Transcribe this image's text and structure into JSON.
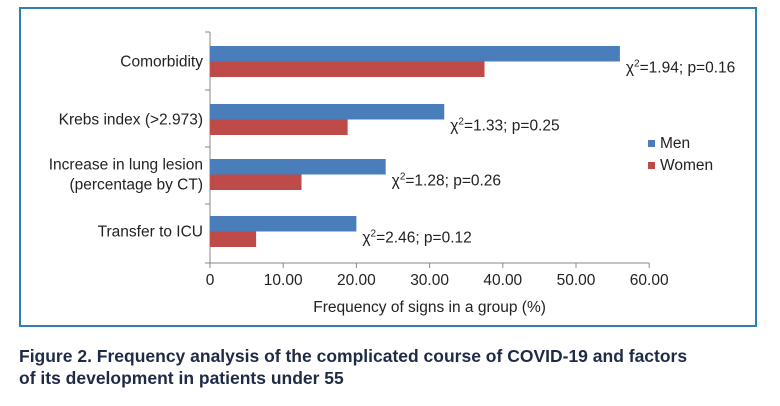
{
  "chart_data": {
    "type": "bar",
    "orientation": "horizontal",
    "categories": [
      "Comorbidity",
      "Krebs index (>2.973)",
      "Increase in lung lesion (percentage by CT)",
      "Transfer to ICU"
    ],
    "category_lines": [
      [
        "Comorbidity"
      ],
      [
        "Krebs index (>2.973)"
      ],
      [
        "Increase in lung lesion",
        "(percentage by CT)"
      ],
      [
        "Transfer to ICU"
      ]
    ],
    "series": [
      {
        "name": "Men",
        "color": "#4a7ebb",
        "values": [
          56.0,
          32.0,
          24.0,
          20.0
        ]
      },
      {
        "name": "Women",
        "color": "#be4b48",
        "values": [
          37.5,
          18.8,
          12.5,
          6.3
        ]
      }
    ],
    "annotations": [
      {
        "chi_sq": "2=1.94; p=0.16"
      },
      {
        "chi_sq": "2=1.33; p=0.25"
      },
      {
        "chi_sq": "2=1.28; p=0.26"
      },
      {
        "chi_sq": "2=2.46; p=0.12"
      }
    ],
    "chi_symbol": "χ",
    "xlim": [
      0,
      60
    ],
    "xticks": [
      "0",
      "10.00",
      "20.00",
      "30.00",
      "40.00",
      "50.00",
      "60.00"
    ],
    "xlabel": "Frequency of signs in a group (%)",
    "ylabel": "",
    "legend_position": "right",
    "grid": false
  },
  "caption": {
    "line1": "Figure 2. Frequency analysis of the complicated course of COVID-19 and factors",
    "line2": "of its development in patients under 55"
  }
}
